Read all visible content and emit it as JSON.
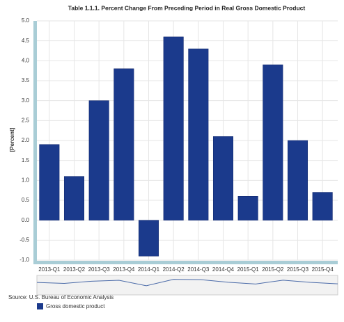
{
  "chart_data": {
    "type": "bar",
    "title": "Table 1.1.1. Percent Change From Preceding Period in Real Gross Domestic Product",
    "y_label": "[Percent]",
    "categories": [
      "2013-Q1",
      "2013-Q2",
      "2013-Q3",
      "2013-Q4",
      "2014-Q1",
      "2014-Q2",
      "2014-Q3",
      "2014-Q4",
      "2015-Q1",
      "2015-Q2",
      "2015-Q3",
      "2015-Q4"
    ],
    "series": [
      {
        "name": "Gross domestic product",
        "color": "#1b3a8c",
        "values": [
          1.9,
          1.1,
          3.0,
          3.8,
          -0.9,
          4.6,
          4.3,
          2.1,
          0.6,
          3.9,
          2.0,
          0.7
        ]
      }
    ],
    "ylim": [
      -1,
      5
    ],
    "yticks": [
      {
        "value": 5,
        "label": "5.0"
      },
      4.5,
      {
        "value": 4,
        "label": "4.0"
      },
      3.5,
      {
        "value": 3,
        "label": "3.0"
      },
      2.5,
      {
        "value": 2,
        "label": "2.0"
      },
      1.5,
      {
        "value": 1,
        "label": "1.0"
      },
      0.5,
      {
        "value": 0,
        "label": "0.0"
      },
      -0.5,
      {
        "value": -1,
        "label": "-1.0"
      }
    ],
    "grid": true,
    "source": "Source: U.S. Bureau of Economic Analysis"
  }
}
